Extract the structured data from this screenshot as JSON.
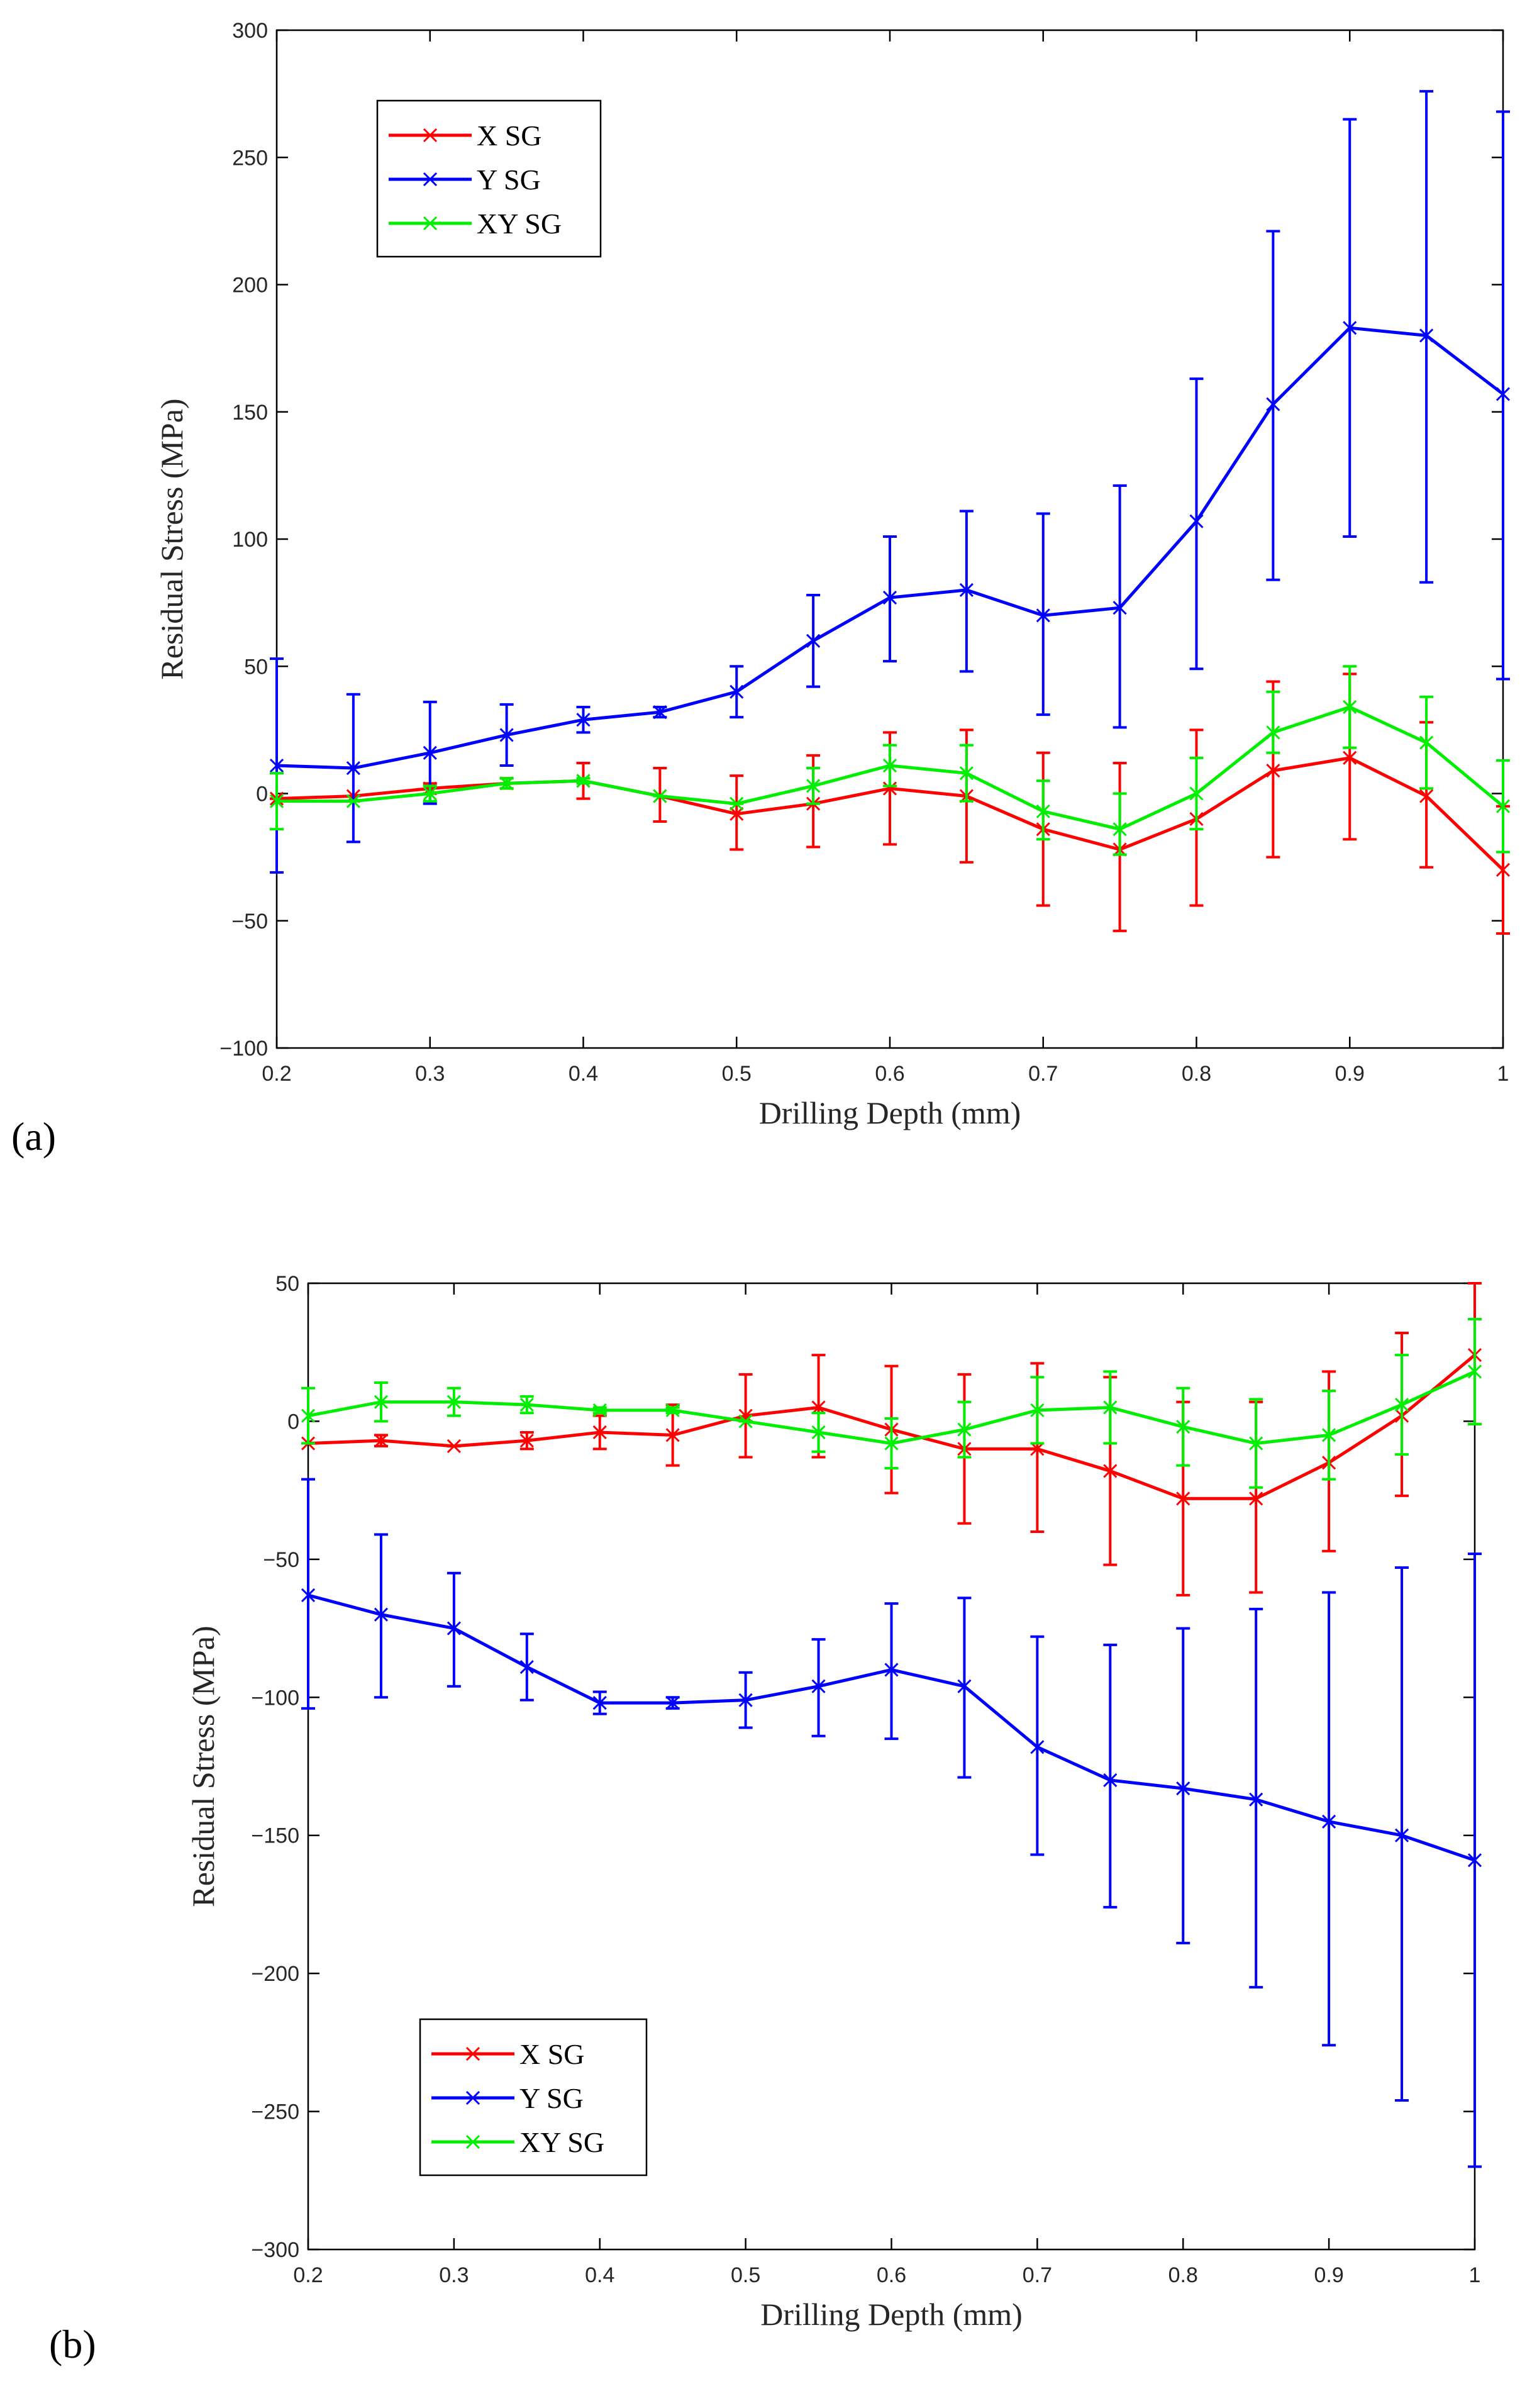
{
  "figure": {
    "panel_labels": [
      "(a)",
      "(b)"
    ]
  },
  "chart_data": [
    {
      "type": "line",
      "panel": "(a)",
      "xlabel": "Drilling Depth (mm)",
      "ylabel": "Residual Stress (MPa)",
      "xlim": [
        0.2,
        1.0
      ],
      "ylim": [
        -100,
        300
      ],
      "xticks": [
        0.2,
        0.3,
        0.4,
        0.5,
        0.6,
        0.7,
        0.8,
        0.9,
        1.0
      ],
      "xtick_labels": [
        "0.2",
        "0.3",
        "0.4",
        "0.5",
        "0.6",
        "0.7",
        "0.8",
        "0.9",
        "1"
      ],
      "yticks": [
        -100,
        -50,
        0,
        50,
        100,
        150,
        200,
        250,
        300
      ],
      "ytick_labels": [
        "−100",
        "−50",
        "0",
        "50",
        "100",
        "150",
        "200",
        "250",
        "300"
      ],
      "grid": false,
      "legend_position": "top-left",
      "x": [
        0.2,
        0.25,
        0.3,
        0.35,
        0.4,
        0.45,
        0.5,
        0.55,
        0.6,
        0.65,
        0.7,
        0.75,
        0.8,
        0.85,
        0.9,
        0.95,
        1.0
      ],
      "series": [
        {
          "name": "X SG",
          "color": "#ff0000",
          "values": [
            -2,
            -1,
            2,
            4,
            5,
            -1,
            -8,
            -4,
            2,
            -1,
            -14,
            -22,
            -10,
            9,
            14,
            -1,
            -30
          ],
          "err_low": [
            -2,
            -1,
            0,
            2,
            -2,
            -11,
            -22,
            -21,
            -20,
            -27,
            -44,
            -54,
            -44,
            -25,
            -18,
            -29,
            -55
          ],
          "err_high": [
            -2,
            -1,
            4,
            6,
            12,
            10,
            7,
            15,
            24,
            25,
            16,
            12,
            25,
            44,
            47,
            28,
            -5
          ]
        },
        {
          "name": "Y SG",
          "color": "#0000ff",
          "values": [
            11,
            10,
            16,
            23,
            29,
            32,
            40,
            60,
            77,
            80,
            70,
            73,
            107,
            153,
            183,
            180,
            157
          ],
          "err_low": [
            -31,
            -19,
            -4,
            11,
            24,
            30,
            30,
            42,
            52,
            48,
            31,
            26,
            49,
            84,
            101,
            83,
            45
          ],
          "err_high": [
            53,
            39,
            36,
            35,
            34,
            34,
            50,
            78,
            101,
            111,
            110,
            121,
            163,
            221,
            265,
            276,
            268
          ]
        },
        {
          "name": "XY SG",
          "color": "#00ee00",
          "values": [
            -3,
            -3,
            0,
            4,
            5,
            -1,
            -4,
            3,
            11,
            8,
            -7,
            -14,
            0,
            24,
            34,
            20,
            -5
          ],
          "err_low": [
            -14,
            -3,
            -3,
            2,
            4,
            -1,
            -4,
            -4,
            3,
            -3,
            -18,
            -24,
            -14,
            16,
            18,
            2,
            -23
          ],
          "err_high": [
            8,
            -3,
            3,
            6,
            6,
            -1,
            -4,
            10,
            19,
            19,
            5,
            0,
            14,
            40,
            50,
            38,
            13
          ]
        }
      ]
    },
    {
      "type": "line",
      "panel": "(b)",
      "xlabel": "Drilling Depth (mm)",
      "ylabel": "Residual Stress (MPa)",
      "xlim": [
        0.2,
        1.0
      ],
      "ylim": [
        -300,
        50
      ],
      "xticks": [
        0.2,
        0.3,
        0.4,
        0.5,
        0.6,
        0.7,
        0.8,
        0.9,
        1.0
      ],
      "xtick_labels": [
        "0.2",
        "0.3",
        "0.4",
        "0.5",
        "0.6",
        "0.7",
        "0.8",
        "0.9",
        "1"
      ],
      "yticks": [
        -300,
        -250,
        -200,
        -150,
        -100,
        -50,
        0,
        50
      ],
      "ytick_labels": [
        "−300",
        "−250",
        "−200",
        "−150",
        "−100",
        "−50",
        "0",
        "50"
      ],
      "grid": false,
      "legend_position": "bottom-left",
      "x": [
        0.2,
        0.25,
        0.3,
        0.35,
        0.4,
        0.45,
        0.5,
        0.55,
        0.6,
        0.65,
        0.7,
        0.75,
        0.8,
        0.85,
        0.9,
        0.95,
        1.0
      ],
      "series": [
        {
          "name": "X SG",
          "color": "#ff0000",
          "values": [
            -8,
            -7,
            -9,
            -7,
            -4,
            -5,
            2,
            5,
            -3,
            -10,
            -10,
            -18,
            -28,
            -28,
            -15,
            2,
            24
          ],
          "err_low": [
            -8,
            -9,
            -9,
            -10,
            -10,
            -16,
            -13,
            -13,
            -26,
            -37,
            -40,
            -52,
            -63,
            -62,
            -47,
            -27,
            -1
          ],
          "err_high": [
            -8,
            -5,
            -9,
            -4,
            2,
            6,
            17,
            24,
            20,
            17,
            21,
            16,
            7,
            7,
            18,
            32,
            50
          ]
        },
        {
          "name": "Y SG",
          "color": "#0000ff",
          "values": [
            -63,
            -70,
            -75,
            -89,
            -102,
            -102,
            -101,
            -96,
            -90,
            -96,
            -118,
            -130,
            -133,
            -137,
            -145,
            -150,
            -159
          ],
          "err_low": [
            -104,
            -100,
            -96,
            -101,
            -106,
            -104,
            -111,
            -114,
            -115,
            -129,
            -157,
            -176,
            -189,
            -205,
            -226,
            -246,
            -270
          ],
          "err_high": [
            -21,
            -41,
            -55,
            -77,
            -98,
            -100,
            -91,
            -79,
            -66,
            -64,
            -78,
            -81,
            -75,
            -68,
            -62,
            -53,
            -48
          ]
        },
        {
          "name": "XY SG",
          "color": "#00ee00",
          "values": [
            2,
            7,
            7,
            6,
            4,
            4,
            0,
            -4,
            -8,
            -3,
            4,
            5,
            -2,
            -8,
            -5,
            6,
            18
          ],
          "err_low": [
            -8,
            0,
            2,
            3,
            3,
            3,
            0,
            -11,
            -17,
            -13,
            -8,
            -8,
            -16,
            -24,
            -21,
            -12,
            -1
          ],
          "err_high": [
            12,
            14,
            12,
            9,
            5,
            5,
            0,
            3,
            1,
            7,
            16,
            18,
            12,
            8,
            11,
            24,
            37
          ]
        }
      ]
    }
  ]
}
